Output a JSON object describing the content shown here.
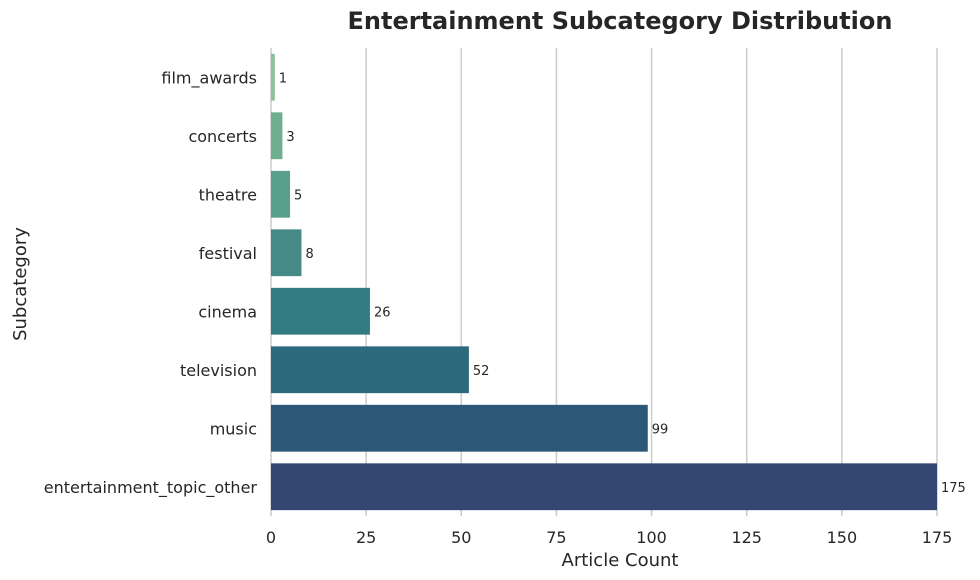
{
  "chart_data": {
    "type": "bar",
    "orientation": "horizontal",
    "title": "Entertainment Subcategory Distribution",
    "xlabel": "Article Count",
    "ylabel": "Subcategory",
    "categories": [
      "film_awards",
      "concerts",
      "theatre",
      "festival",
      "cinema",
      "television",
      "music",
      "entertainment_topic_other"
    ],
    "values": [
      1,
      3,
      5,
      8,
      26,
      52,
      99,
      175
    ],
    "xlim": [
      0,
      175
    ],
    "xticks": [
      0,
      25,
      50,
      75,
      100,
      125,
      150,
      175
    ],
    "grid": "vertical",
    "colors": [
      "#8dc09b",
      "#6fae8e",
      "#589f8c",
      "#458a86",
      "#337b83",
      "#2b6a7c",
      "#2c5878",
      "#344672"
    ]
  }
}
